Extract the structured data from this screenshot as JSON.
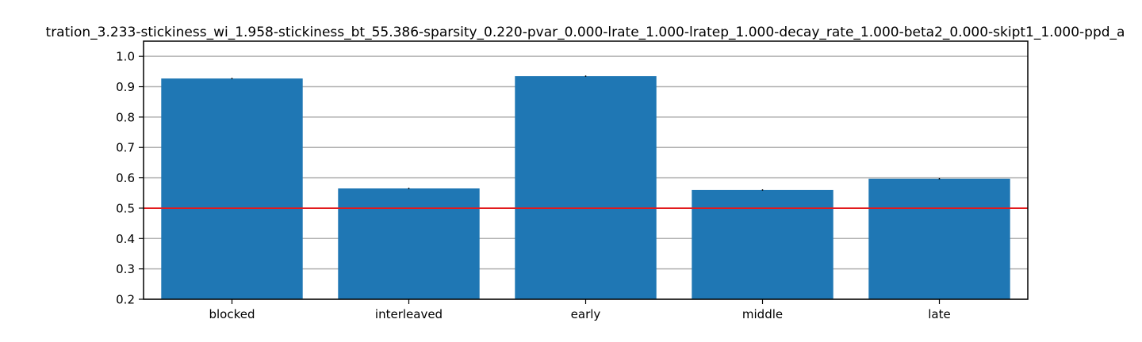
{
  "chart_data": {
    "type": "bar",
    "title": "tration_3.233-stickiness_wi_1.958-stickiness_bt_55.386-sparsity_0.220-pvar_0.000-lrate_1.000-lratep_1.000-decay_rate_1.000-beta2_0.000-skipt1_1.000-ppd_a",
    "categories": [
      "blocked",
      "interleaved",
      "early",
      "middle",
      "late"
    ],
    "values": [
      0.927,
      0.565,
      0.935,
      0.56,
      0.597
    ],
    "error": [
      0.002,
      0.002,
      0.002,
      0.002,
      0.002
    ],
    "xlabel": "",
    "ylabel": "",
    "ylim": [
      0.2,
      1.05
    ],
    "yticks": [
      0.2,
      0.3,
      0.4,
      0.5,
      0.6,
      0.7,
      0.8,
      0.9,
      1.0
    ],
    "ytick_labels": [
      "0.2",
      "0.3",
      "0.4",
      "0.5",
      "0.6",
      "0.7",
      "0.8",
      "0.9",
      "1.0"
    ],
    "reference_line": 0.5,
    "grid": "horizontal",
    "legend": "none",
    "colors": {
      "bar": "#1f77b4",
      "reference_line": "#e31a1c",
      "grid": "#b0b0b0",
      "error_bar": "#000000"
    }
  }
}
